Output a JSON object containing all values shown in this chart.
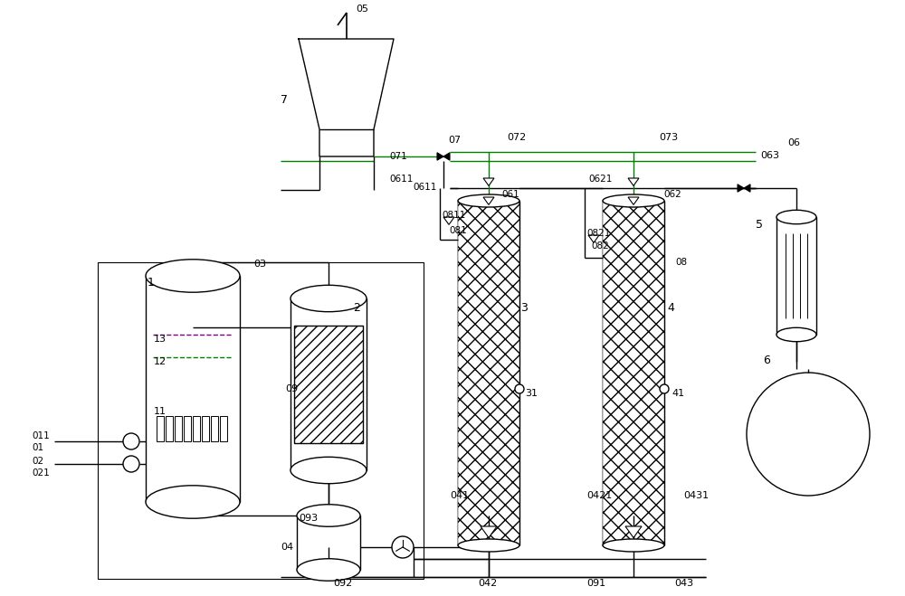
{
  "bg_color": "#ffffff",
  "lc": "#000000",
  "gc": "#008000",
  "pc": "#800080",
  "gray": "#808080",
  "lw": 1.0
}
